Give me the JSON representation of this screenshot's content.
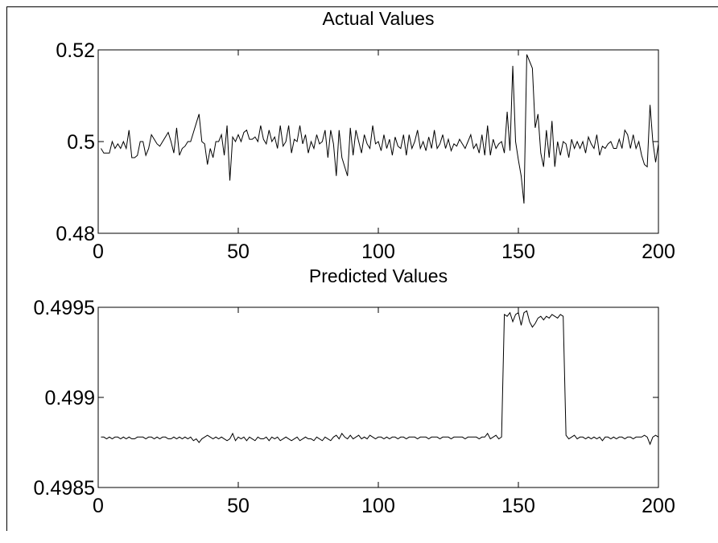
{
  "chart_data": [
    {
      "type": "line",
      "title": "Actual Values",
      "color": "#000000",
      "xlim": [
        0,
        200
      ],
      "xticks": [
        0,
        50,
        100,
        150,
        200
      ],
      "ylim": [
        0.48,
        0.52
      ],
      "yticks": [
        0.48,
        0.5,
        0.52
      ],
      "x": [
        1,
        2,
        3,
        4,
        5,
        6,
        7,
        8,
        9,
        10,
        11,
        12,
        13,
        14,
        15,
        16,
        17,
        18,
        19,
        20,
        21,
        22,
        23,
        24,
        25,
        26,
        27,
        28,
        29,
        30,
        31,
        32,
        33,
        34,
        35,
        36,
        37,
        38,
        39,
        40,
        41,
        42,
        43,
        44,
        45,
        46,
        47,
        48,
        49,
        50,
        51,
        52,
        53,
        54,
        55,
        56,
        57,
        58,
        59,
        60,
        61,
        62,
        63,
        64,
        65,
        66,
        67,
        68,
        69,
        70,
        71,
        72,
        73,
        74,
        75,
        76,
        77,
        78,
        79,
        80,
        81,
        82,
        83,
        84,
        85,
        86,
        87,
        88,
        89,
        90,
        91,
        92,
        93,
        94,
        95,
        96,
        97,
        98,
        99,
        100,
        101,
        102,
        103,
        104,
        105,
        106,
        107,
        108,
        109,
        110,
        111,
        112,
        113,
        114,
        115,
        116,
        117,
        118,
        119,
        120,
        121,
        122,
        123,
        124,
        125,
        126,
        127,
        128,
        129,
        130,
        131,
        132,
        133,
        134,
        135,
        136,
        137,
        138,
        139,
        140,
        141,
        142,
        143,
        144,
        145,
        146,
        147,
        148,
        149,
        150,
        151,
        152,
        153,
        154,
        155,
        156,
        157,
        158,
        159,
        160,
        161,
        162,
        163,
        164,
        165,
        166,
        167,
        168,
        169,
        170,
        171,
        172,
        173,
        174,
        175,
        176,
        177,
        178,
        179,
        180,
        181,
        182,
        183,
        184,
        185,
        186,
        187,
        188,
        189,
        190,
        191,
        192,
        193,
        194,
        195,
        196,
        197,
        198,
        199,
        200
      ],
      "values": [
        0.4985,
        0.4975,
        0.4975,
        0.4975,
        0.5,
        0.4985,
        0.4995,
        0.4985,
        0.5,
        0.4985,
        0.5025,
        0.4965,
        0.4965,
        0.497,
        0.5,
        0.5,
        0.497,
        0.4985,
        0.5015,
        0.5005,
        0.4995,
        0.499,
        0.5,
        0.501,
        0.502,
        0.5,
        0.4975,
        0.503,
        0.497,
        0.4985,
        0.499,
        0.5,
        0.5,
        0.502,
        0.504,
        0.506,
        0.5,
        0.4995,
        0.495,
        0.4985,
        0.4965,
        0.5,
        0.5,
        0.5015,
        0.497,
        0.5035,
        0.4915,
        0.501,
        0.5,
        0.5015,
        0.5,
        0.502,
        0.5025,
        0.5005,
        0.5005,
        0.501,
        0.5,
        0.5035,
        0.5005,
        0.4995,
        0.5025,
        0.5,
        0.501,
        0.4985,
        0.5035,
        0.499,
        0.5,
        0.5035,
        0.4975,
        0.5005,
        0.5,
        0.5035,
        0.4995,
        0.5015,
        0.4975,
        0.5,
        0.4985,
        0.5015,
        0.4995,
        0.5,
        0.5025,
        0.4965,
        0.5025,
        0.4995,
        0.4925,
        0.5025,
        0.4965,
        0.4945,
        0.4925,
        0.503,
        0.497,
        0.5025,
        0.5,
        0.4975,
        0.5015,
        0.4995,
        0.4985,
        0.5035,
        0.4995,
        0.5,
        0.498,
        0.5015,
        0.4985,
        0.5005,
        0.497,
        0.501,
        0.499,
        0.4985,
        0.5015,
        0.497,
        0.5015,
        0.4985,
        0.5,
        0.5025,
        0.4985,
        0.5,
        0.498,
        0.501,
        0.4985,
        0.5025,
        0.4985,
        0.4995,
        0.5015,
        0.4985,
        0.5005,
        0.498,
        0.4995,
        0.499,
        0.5005,
        0.4995,
        0.4985,
        0.5,
        0.5015,
        0.4985,
        0.4995,
        0.4975,
        0.5015,
        0.497,
        0.5035,
        0.497,
        0.5005,
        0.4985,
        0.4995,
        0.5,
        0.4975,
        0.5065,
        0.498,
        0.5165,
        0.5,
        0.496,
        0.4925,
        0.4865,
        0.519,
        0.5175,
        0.516,
        0.503,
        0.506,
        0.4975,
        0.4945,
        0.5025,
        0.4965,
        0.5045,
        0.4945,
        0.5,
        0.497,
        0.5,
        0.4995,
        0.4965,
        0.5005,
        0.4985,
        0.5,
        0.4985,
        0.5,
        0.4975,
        0.501,
        0.4995,
        0.4985,
        0.5015,
        0.497,
        0.499,
        0.4985,
        0.4995,
        0.5,
        0.4985,
        0.4985,
        0.5005,
        0.4985,
        0.5025,
        0.5015,
        0.4985,
        0.5015,
        0.4985,
        0.5,
        0.497,
        0.495,
        0.4945,
        0.508,
        0.5,
        0.4955,
        0.4995
      ]
    },
    {
      "type": "line",
      "title": "Predicted Values",
      "color": "#000000",
      "xlim": [
        0,
        200
      ],
      "xticks": [
        0,
        50,
        100,
        150,
        200
      ],
      "ylim": [
        0.4985,
        0.4995
      ],
      "yticks": [
        0.4985,
        0.499,
        0.4995
      ],
      "x": [
        1,
        2,
        3,
        4,
        5,
        6,
        7,
        8,
        9,
        10,
        11,
        12,
        13,
        14,
        15,
        16,
        17,
        18,
        19,
        20,
        21,
        22,
        23,
        24,
        25,
        26,
        27,
        28,
        29,
        30,
        31,
        32,
        33,
        34,
        35,
        36,
        37,
        38,
        39,
        40,
        41,
        42,
        43,
        44,
        45,
        46,
        47,
        48,
        49,
        50,
        51,
        52,
        53,
        54,
        55,
        56,
        57,
        58,
        59,
        60,
        61,
        62,
        63,
        64,
        65,
        66,
        67,
        68,
        69,
        70,
        71,
        72,
        73,
        74,
        75,
        76,
        77,
        78,
        79,
        80,
        81,
        82,
        83,
        84,
        85,
        86,
        87,
        88,
        89,
        90,
        91,
        92,
        93,
        94,
        95,
        96,
        97,
        98,
        99,
        100,
        101,
        102,
        103,
        104,
        105,
        106,
        107,
        108,
        109,
        110,
        111,
        112,
        113,
        114,
        115,
        116,
        117,
        118,
        119,
        120,
        121,
        122,
        123,
        124,
        125,
        126,
        127,
        128,
        129,
        130,
        131,
        132,
        133,
        134,
        135,
        136,
        137,
        138,
        139,
        140,
        141,
        142,
        143,
        144,
        145,
        146,
        147,
        148,
        149,
        150,
        151,
        152,
        153,
        154,
        155,
        156,
        157,
        158,
        159,
        160,
        161,
        162,
        163,
        164,
        165,
        166,
        167,
        168,
        169,
        170,
        171,
        172,
        173,
        174,
        175,
        176,
        177,
        178,
        179,
        180,
        181,
        182,
        183,
        184,
        185,
        186,
        187,
        188,
        189,
        190,
        191,
        192,
        193,
        194,
        195,
        196,
        197,
        198,
        199,
        200
      ],
      "values": [
        0.49878,
        0.49878,
        0.49877,
        0.49878,
        0.49877,
        0.49878,
        0.49878,
        0.49877,
        0.49878,
        0.49877,
        0.49878,
        0.49877,
        0.49877,
        0.49878,
        0.49878,
        0.49878,
        0.49877,
        0.49878,
        0.49878,
        0.49877,
        0.49878,
        0.49877,
        0.49878,
        0.49878,
        0.49877,
        0.49877,
        0.49878,
        0.49877,
        0.49878,
        0.49877,
        0.49878,
        0.49877,
        0.49878,
        0.49876,
        0.49877,
        0.49875,
        0.49877,
        0.49878,
        0.49879,
        0.49878,
        0.49877,
        0.49878,
        0.49877,
        0.49878,
        0.49877,
        0.49876,
        0.49877,
        0.4988,
        0.49876,
        0.49878,
        0.49877,
        0.49878,
        0.49876,
        0.49878,
        0.49877,
        0.49876,
        0.49878,
        0.49877,
        0.49877,
        0.49878,
        0.49876,
        0.49878,
        0.49877,
        0.49878,
        0.49876,
        0.49877,
        0.49878,
        0.49877,
        0.49876,
        0.49877,
        0.49878,
        0.49876,
        0.49877,
        0.49878,
        0.49877,
        0.49877,
        0.49876,
        0.49878,
        0.49877,
        0.49876,
        0.49878,
        0.49877,
        0.49876,
        0.49878,
        0.49879,
        0.49877,
        0.4988,
        0.49878,
        0.49877,
        0.49879,
        0.49877,
        0.49878,
        0.49879,
        0.49877,
        0.49878,
        0.49877,
        0.49879,
        0.49878,
        0.49877,
        0.49878,
        0.49878,
        0.49877,
        0.49878,
        0.49877,
        0.49878,
        0.49878,
        0.49877,
        0.49878,
        0.49878,
        0.49877,
        0.49878,
        0.49878,
        0.49878,
        0.49877,
        0.49878,
        0.49878,
        0.49878,
        0.49877,
        0.49878,
        0.49878,
        0.49878,
        0.49877,
        0.49878,
        0.49878,
        0.49878,
        0.49877,
        0.49878,
        0.49878,
        0.49878,
        0.49878,
        0.49877,
        0.49878,
        0.49878,
        0.49878,
        0.49878,
        0.49877,
        0.49878,
        0.49878,
        0.4988,
        0.49877,
        0.49878,
        0.49879,
        0.49877,
        0.49878,
        0.49946,
        0.49945,
        0.49947,
        0.49942,
        0.49946,
        0.49947,
        0.4994,
        0.49947,
        0.49948,
        0.49942,
        0.49939,
        0.49941,
        0.49944,
        0.49945,
        0.49943,
        0.49945,
        0.49944,
        0.49946,
        0.49945,
        0.49944,
        0.49946,
        0.49945,
        0.49879,
        0.49877,
        0.49878,
        0.49879,
        0.49877,
        0.49878,
        0.49878,
        0.49877,
        0.49878,
        0.49877,
        0.49878,
        0.49877,
        0.49878,
        0.49876,
        0.49878,
        0.49878,
        0.49877,
        0.49878,
        0.49877,
        0.49878,
        0.49878,
        0.49877,
        0.49878,
        0.49878,
        0.49877,
        0.49878,
        0.49878,
        0.49878,
        0.49879,
        0.49878,
        0.49874,
        0.49878,
        0.49879,
        0.49878
      ]
    }
  ]
}
